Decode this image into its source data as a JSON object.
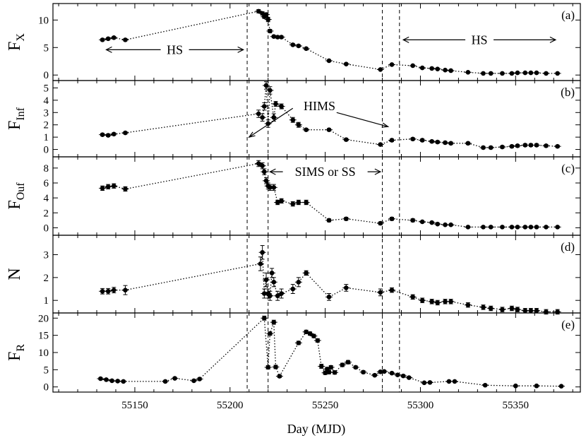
{
  "chart_data": {
    "type": "scatter",
    "xlabel": "Day (MJD)",
    "xlim": [
      55107,
      55384
    ],
    "xticks": [
      55150,
      55200,
      55250,
      55300,
      55350
    ],
    "vlines": [
      55209,
      55220,
      55280,
      55289
    ],
    "panels": [
      {
        "id": "a",
        "label": "(a)",
        "ylabel": "F",
        "ylabel_sub": "X",
        "ylim": [
          -1,
          13
        ],
        "yticks": [
          0,
          5,
          10
        ],
        "annotations": [
          {
            "text": "HS",
            "arrow": "both",
            "x": [
              55135,
              55207
            ],
            "y": 4.6
          },
          {
            "text": "HS",
            "arrow": "both",
            "x": [
              55291,
              55371
            ],
            "y": 6.4
          }
        ],
        "x": [
          55133,
          55136,
          55139,
          55145,
          55215,
          55217,
          55218,
          55219,
          55220,
          55221,
          55223,
          55225,
          55227,
          55233,
          55236,
          55240,
          55252,
          55261,
          55279,
          55285,
          55296,
          55301,
          55306,
          55309,
          55313,
          55316,
          55325,
          55333,
          55337,
          55343,
          55348,
          55351,
          55355,
          55358,
          55361,
          55366,
          55372
        ],
        "y": [
          6.4,
          6.6,
          6.8,
          6.4,
          11.6,
          11.2,
          10.6,
          11.0,
          10.1,
          8.0,
          7.0,
          6.9,
          6.9,
          5.5,
          5.3,
          4.8,
          2.6,
          2.0,
          1.0,
          1.9,
          1.7,
          1.3,
          1.2,
          1.1,
          0.9,
          0.8,
          0.5,
          0.3,
          0.3,
          0.3,
          0.3,
          0.4,
          0.4,
          0.4,
          0.4,
          0.3,
          0.3
        ],
        "err": [
          0.2,
          0.2,
          0.2,
          0.2,
          0.3,
          0.3,
          0.3,
          0.3,
          0.4,
          0.3,
          0.2,
          0.2,
          0.2,
          0.2,
          0.2,
          0.2,
          0.1,
          0.1,
          0.1,
          0.1,
          0.1,
          0.1,
          0.1,
          0.1,
          0.1,
          0.1,
          0.1,
          0.1,
          0.1,
          0.1,
          0.1,
          0.1,
          0.1,
          0.1,
          0.1,
          0.1,
          0.1
        ]
      },
      {
        "id": "b",
        "label": "(b)",
        "ylabel": "F",
        "ylabel_sub": "Inf",
        "ylim": [
          -0.6,
          5.6
        ],
        "yticks": [
          0,
          1,
          2,
          3,
          4,
          5
        ],
        "annotations": [
          {
            "text": "HIMS",
            "x": 55247,
            "y": 3.2
          },
          {
            "text": "",
            "arrow": "to",
            "x": [
              55233,
              55210
            ],
            "y": [
              3.35,
              1.0
            ]
          },
          {
            "text": "",
            "arrow": "to",
            "x": [
              55256,
              55283
            ],
            "y": [
              3.0,
              1.85
            ]
          }
        ],
        "x": [
          55133,
          55136,
          55139,
          55145,
          55215,
          55217,
          55218,
          55219,
          55220,
          55221,
          55223,
          55224,
          55227,
          55233,
          55236,
          55240,
          55252,
          55261,
          55279,
          55285,
          55296,
          55301,
          55306,
          55309,
          55313,
          55316,
          55325,
          55333,
          55337,
          55343,
          55348,
          55351,
          55355,
          55358,
          55361,
          55366,
          55372
        ],
        "y": [
          1.2,
          1.15,
          1.25,
          1.35,
          2.9,
          2.6,
          3.5,
          5.2,
          2.1,
          4.8,
          2.6,
          3.7,
          3.5,
          2.4,
          2.0,
          1.6,
          1.6,
          0.8,
          0.4,
          0.75,
          0.85,
          0.75,
          0.65,
          0.6,
          0.55,
          0.5,
          0.5,
          0.15,
          0.15,
          0.2,
          0.25,
          0.3,
          0.35,
          0.35,
          0.35,
          0.3,
          0.25
        ],
        "err": [
          0.1,
          0.1,
          0.1,
          0.1,
          0.3,
          0.3,
          0.3,
          0.3,
          0.3,
          0.3,
          0.3,
          0.2,
          0.2,
          0.2,
          0.2,
          0.1,
          0.1,
          0.1,
          0.1,
          0.1,
          0.1,
          0.1,
          0.1,
          0.1,
          0.1,
          0.1,
          0.1,
          0.1,
          0.1,
          0.1,
          0.1,
          0.1,
          0.1,
          0.1,
          0.1,
          0.1,
          0.1
        ]
      },
      {
        "id": "c",
        "label": "(c)",
        "ylabel": "F",
        "ylabel_sub": "Ouf",
        "ylim": [
          -1,
          9.5
        ],
        "yticks": [
          0,
          2,
          4,
          6,
          8
        ],
        "annotations": [
          {
            "text": "SIMS or SS",
            "arrow": "both",
            "x": [
              55221,
              55279
            ],
            "y": 7.5
          }
        ],
        "x": [
          55133,
          55136,
          55139,
          55145,
          55215,
          55217,
          55218,
          55219,
          55220,
          55221,
          55223,
          55225,
          55227,
          55233,
          55236,
          55240,
          55252,
          55261,
          55279,
          55285,
          55296,
          55301,
          55306,
          55309,
          55313,
          55316,
          55325,
          55333,
          55337,
          55343,
          55348,
          55351,
          55355,
          55358,
          55361,
          55366,
          55372
        ],
        "y": [
          5.3,
          5.5,
          5.6,
          5.2,
          8.6,
          8.3,
          7.5,
          6.3,
          5.6,
          5.4,
          5.4,
          3.4,
          3.6,
          3.2,
          3.4,
          3.4,
          1.0,
          1.2,
          0.6,
          1.2,
          1.0,
          0.8,
          0.7,
          0.5,
          0.4,
          0.4,
          0.1,
          0.1,
          0.1,
          0.1,
          0.1,
          0.1,
          0.1,
          0.1,
          0.1,
          0.1,
          0.1
        ],
        "err": [
          0.3,
          0.3,
          0.3,
          0.3,
          0.4,
          0.4,
          0.4,
          0.4,
          0.4,
          0.4,
          0.4,
          0.3,
          0.3,
          0.3,
          0.3,
          0.3,
          0.2,
          0.2,
          0.2,
          0.2,
          0.2,
          0.1,
          0.1,
          0.1,
          0.1,
          0.1,
          0.1,
          0.1,
          0.1,
          0.1,
          0.1,
          0.1,
          0.1,
          0.1,
          0.1,
          0.1,
          0.1
        ]
      },
      {
        "id": "d",
        "label": "(d)",
        "ylabel": "N",
        "ylabel_sub": "",
        "ylim": [
          0.45,
          3.85
        ],
        "yticks": [
          1,
          2,
          3
        ],
        "annotations": [],
        "x": [
          55133,
          55136,
          55139,
          55145,
          55216,
          55217,
          55218,
          55219,
          55220,
          55221,
          55222,
          55223,
          55225,
          55227,
          55233,
          55236,
          55240,
          55252,
          55261,
          55279,
          55285,
          55296,
          55301,
          55306,
          55309,
          55313,
          55316,
          55325,
          55333,
          55337,
          55343,
          55348,
          55351,
          55355,
          55358,
          55361,
          55366,
          55372
        ],
        "y": [
          1.4,
          1.4,
          1.45,
          1.45,
          2.6,
          3.1,
          1.3,
          1.9,
          1.3,
          1.2,
          2.2,
          1.8,
          1.2,
          1.3,
          1.5,
          1.8,
          2.2,
          1.15,
          1.55,
          1.35,
          1.45,
          1.15,
          1.0,
          0.95,
          0.9,
          0.95,
          0.95,
          0.8,
          0.7,
          0.65,
          0.6,
          0.65,
          0.6,
          0.55,
          0.55,
          0.55,
          0.5,
          0.5
        ],
        "err": [
          0.12,
          0.12,
          0.12,
          0.2,
          0.3,
          0.3,
          0.2,
          0.3,
          0.2,
          0.2,
          0.2,
          0.2,
          0.2,
          0.2,
          0.2,
          0.2,
          0.1,
          0.15,
          0.15,
          0.15,
          0.1,
          0.1,
          0.1,
          0.1,
          0.1,
          0.1,
          0.1,
          0.1,
          0.1,
          0.1,
          0.1,
          0.1,
          0.1,
          0.1,
          0.1,
          0.1,
          0.1,
          0.1
        ]
      },
      {
        "id": "e",
        "label": "(e)",
        "ylabel": "F",
        "ylabel_sub": "R",
        "ylim": [
          -1.5,
          21.5
        ],
        "yticks": [
          0,
          5,
          10,
          15,
          20
        ],
        "annotations": [],
        "x": [
          55132,
          55135,
          55138,
          55141,
          55144,
          55166,
          55171,
          55181,
          55184,
          55218,
          55220,
          55221,
          55223,
          55224,
          55226,
          55236,
          55240,
          55242,
          55244,
          55246,
          55248,
          55250,
          55251,
          55252,
          55253,
          55255,
          55259,
          55262,
          55266,
          55270,
          55276,
          55279,
          55281,
          55285,
          55288,
          55291,
          55294,
          55302,
          55305,
          55315,
          55318,
          55334,
          55350,
          55361,
          55374
        ],
        "y": [
          2.4,
          2.1,
          1.8,
          1.7,
          1.6,
          1.6,
          2.5,
          1.8,
          2.3,
          20.0,
          5.7,
          15.5,
          18.8,
          5.8,
          3.1,
          12.8,
          16.0,
          15.5,
          14.8,
          13.5,
          6.0,
          4.1,
          5.2,
          4.3,
          5.7,
          4.2,
          6.4,
          7.2,
          5.7,
          4.3,
          3.4,
          4.4,
          4.5,
          4.0,
          3.5,
          3.2,
          2.7,
          1.2,
          1.3,
          1.6,
          1.6,
          0.5,
          0.3,
          0.3,
          0.2
        ],
        "err": [
          0.3,
          0.3,
          0.3,
          0.3,
          0.3,
          0.3,
          0.3,
          0.3,
          0.3,
          0.6,
          0.5,
          0.5,
          0.6,
          0.5,
          0.4,
          0.5,
          0.5,
          0.5,
          0.5,
          0.5,
          0.6,
          0.5,
          0.5,
          0.5,
          0.5,
          0.5,
          0.5,
          0.5,
          0.4,
          0.4,
          0.3,
          0.3,
          0.3,
          0.3,
          0.3,
          0.3,
          0.3,
          0.2,
          0.2,
          0.2,
          0.2,
          0.2,
          0.2,
          0.2,
          0.2
        ]
      }
    ]
  }
}
